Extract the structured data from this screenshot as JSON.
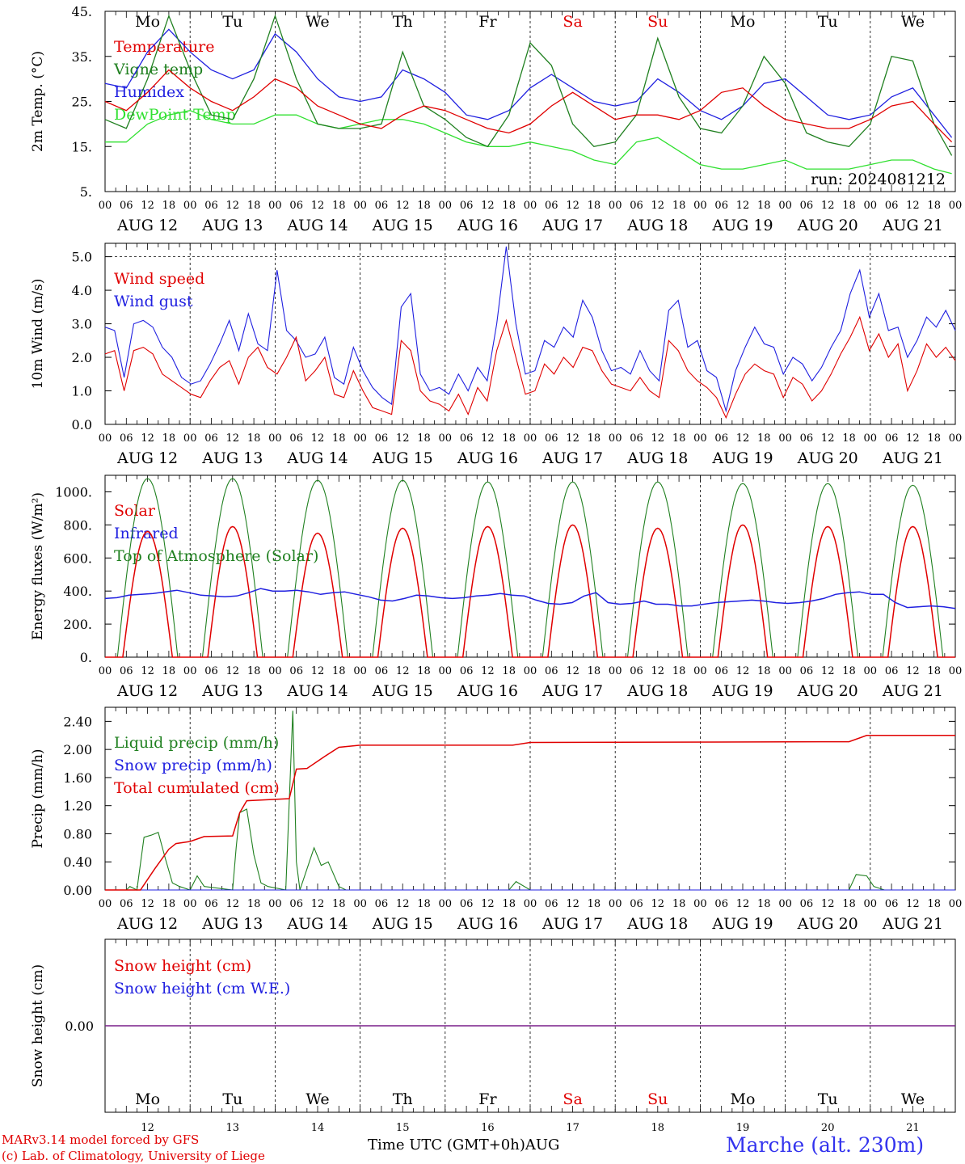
{
  "chart_data": [
    {
      "type": "line",
      "ylabel": "2m Temp. (°C)",
      "ylim": [
        5,
        45
      ],
      "yticks": [
        "45.",
        "35.",
        "25.",
        "15.",
        "5."
      ],
      "yticks_values": [
        45,
        35,
        25,
        15,
        5
      ],
      "annotation": "run: 2024081212",
      "x_hours": [
        0,
        6,
        12,
        18,
        24,
        30,
        36,
        42,
        48,
        54,
        60,
        66,
        72,
        78,
        84,
        90,
        96,
        102,
        108,
        114,
        120,
        126,
        132,
        138,
        144,
        150,
        156,
        162,
        168,
        174,
        180,
        186,
        192,
        198,
        204,
        210,
        216,
        222,
        228,
        234,
        239
      ],
      "series": [
        {
          "name": "Temperature",
          "color": "#e00000",
          "values": [
            25,
            23,
            27,
            32,
            28,
            25,
            23,
            26,
            30,
            28,
            24,
            22,
            20,
            19,
            22,
            24,
            23,
            21,
            19,
            18,
            20,
            24,
            27,
            24,
            21,
            22,
            22,
            21,
            23,
            27,
            28,
            24,
            21,
            20,
            19,
            19,
            21,
            24,
            25,
            20,
            16
          ]
        },
        {
          "name": "Vigne temp",
          "color": "#208020",
          "values": [
            21,
            19,
            30,
            44,
            32,
            22,
            21,
            30,
            44,
            30,
            20,
            19,
            19,
            20,
            36,
            24,
            21,
            17,
            15,
            22,
            38,
            33,
            20,
            15,
            16,
            22,
            39,
            26,
            19,
            18,
            24,
            35,
            29,
            18,
            16,
            15,
            20,
            35,
            34,
            20,
            13
          ]
        },
        {
          "name": "Humidex",
          "color": "#2020e0",
          "values": [
            29,
            28,
            36,
            41,
            36,
            32,
            30,
            32,
            40,
            36,
            30,
            26,
            25,
            26,
            32,
            30,
            27,
            22,
            21,
            23,
            28,
            31,
            28,
            25,
            24,
            25,
            30,
            27,
            23,
            21,
            24,
            29,
            30,
            26,
            22,
            21,
            22,
            26,
            28,
            22,
            17
          ]
        },
        {
          "name": "DewPoint Temp",
          "color": "#30e030",
          "values": [
            16,
            16,
            20,
            22,
            23,
            21,
            20,
            20,
            22,
            22,
            20,
            19,
            20,
            21,
            21,
            20,
            18,
            16,
            15,
            15,
            16,
            15,
            14,
            12,
            11,
            16,
            17,
            14,
            11,
            10,
            10,
            11,
            12,
            10,
            10,
            10,
            11,
            12,
            12,
            10,
            9
          ]
        }
      ]
    },
    {
      "type": "line",
      "ylabel": "10m Wind (m/s)",
      "ylim": [
        0,
        5.4
      ],
      "yticks": [
        "5.0",
        "4.0",
        "3.0",
        "2.0",
        "1.0",
        "0.0"
      ],
      "yticks_values": [
        5,
        4,
        3,
        2,
        1,
        0
      ],
      "series": [
        {
          "name": "Wind speed",
          "color": "#e00000",
          "values": [
            2.1,
            2.2,
            1.0,
            2.2,
            2.3,
            2.1,
            1.5,
            1.3,
            1.1,
            0.9,
            0.8,
            1.3,
            1.7,
            1.9,
            1.2,
            2.0,
            2.3,
            1.7,
            1.5,
            2.0,
            2.6,
            1.3,
            1.6,
            2.0,
            0.9,
            0.8,
            1.6,
            1.0,
            0.5,
            0.4,
            0.3,
            2.5,
            2.2,
            1.0,
            0.7,
            0.6,
            0.4,
            0.9,
            0.3,
            1.1,
            0.7,
            2.2,
            3.1,
            2.0,
            0.9,
            1.0,
            1.8,
            1.5,
            2.0,
            1.7,
            2.3,
            2.2,
            1.6,
            1.2,
            1.1,
            1.0,
            1.4,
            1.0,
            0.8,
            2.5,
            2.2,
            1.6,
            1.3,
            1.1,
            0.8,
            0.2,
            0.9,
            1.5,
            1.8,
            1.6,
            1.5,
            0.8,
            1.4,
            1.2,
            0.7,
            1.0,
            1.5,
            2.1,
            2.6,
            3.2,
            2.2,
            2.7,
            2.0,
            2.4,
            1.0,
            1.6,
            2.4,
            2.0,
            2.3,
            1.9
          ]
        },
        {
          "name": "Wind gust",
          "color": "#2020e0",
          "values": [
            2.9,
            2.8,
            1.4,
            3.0,
            3.1,
            2.9,
            2.3,
            2.0,
            1.4,
            1.2,
            1.3,
            1.8,
            2.4,
            3.1,
            2.2,
            3.3,
            2.4,
            2.2,
            4.6,
            2.8,
            2.5,
            2.0,
            2.1,
            2.6,
            1.4,
            1.2,
            2.3,
            1.6,
            1.1,
            0.8,
            0.6,
            3.5,
            3.9,
            1.5,
            1.0,
            1.1,
            0.9,
            1.5,
            1.0,
            1.7,
            1.3,
            3.0,
            5.3,
            3.0,
            1.5,
            1.6,
            2.5,
            2.3,
            2.9,
            2.6,
            3.7,
            3.2,
            2.2,
            1.6,
            1.7,
            1.5,
            2.2,
            1.6,
            1.3,
            3.4,
            3.7,
            2.3,
            2.5,
            1.6,
            1.4,
            0.4,
            1.6,
            2.3,
            2.9,
            2.4,
            2.3,
            1.5,
            2.0,
            1.8,
            1.3,
            1.7,
            2.3,
            2.8,
            3.9,
            4.6,
            3.2,
            3.9,
            2.8,
            2.9,
            2.0,
            2.5,
            3.2,
            2.9,
            3.4,
            2.8
          ]
        }
      ]
    },
    {
      "type": "line",
      "ylabel": "Energy fluxes (W/m²)",
      "ylim": [
        0,
        1100
      ],
      "yticks": [
        "1000.",
        "800.",
        "600.",
        "400.",
        "200.",
        "0."
      ],
      "yticks_values": [
        1000,
        800,
        600,
        400,
        200,
        0
      ],
      "series": [
        {
          "name": "Solar",
          "color": "#e00000",
          "daily_peak": [
            760,
            790,
            750,
            780,
            790,
            800,
            780,
            800,
            790,
            790
          ]
        },
        {
          "name": "Infrared",
          "color": "#2020e0",
          "values": [
            355,
            360,
            375,
            380,
            385,
            395,
            405,
            390,
            375,
            370,
            365,
            370,
            390,
            415,
            400,
            400,
            405,
            395,
            380,
            390,
            395,
            380,
            365,
            345,
            340,
            355,
            375,
            370,
            360,
            355,
            360,
            370,
            375,
            385,
            375,
            370,
            345,
            325,
            320,
            330,
            370,
            390,
            330,
            320,
            325,
            340,
            320,
            320,
            310,
            310,
            320,
            330,
            335,
            340,
            345,
            340,
            330,
            325,
            330,
            340,
            355,
            380,
            390,
            395,
            380,
            380,
            330,
            300,
            305,
            310,
            305,
            295
          ]
        },
        {
          "name": "Top of Atmosphere (Solar)",
          "color": "#208020",
          "daily_peak": [
            1080,
            1080,
            1070,
            1070,
            1060,
            1060,
            1060,
            1050,
            1050,
            1040
          ]
        }
      ]
    },
    {
      "type": "line",
      "ylabel": "Precip (mm/h)",
      "ylim": [
        0,
        2.6
      ],
      "yticks": [
        "2.40",
        "2.00",
        "1.60",
        "1.20",
        "0.80",
        "0.40",
        "0.00"
      ],
      "yticks_values": [
        2.4,
        2.0,
        1.6,
        1.2,
        0.8,
        0.4,
        0.0
      ],
      "series": [
        {
          "name": "Liquid precip (mm/h)",
          "color": "#208020"
        },
        {
          "name": "Snow precip (mm/h)",
          "color": "#2020e0"
        },
        {
          "name": "Total cumulated (cm)",
          "color": "#e00000"
        }
      ]
    },
    {
      "type": "line",
      "ylabel": "Snow height (cm)",
      "ytick": "0.00",
      "series": [
        {
          "name": "Snow height (cm)",
          "color": "#e00000"
        },
        {
          "name": "Snow height (cm W.E.)",
          "color": "#2020e0"
        }
      ]
    }
  ],
  "x_axis": {
    "hour_ticks": [
      "00",
      "06",
      "12",
      "18"
    ],
    "date_labels": [
      "AUG 12",
      "AUG 13",
      "AUG 14",
      "AUG 15",
      "AUG 16",
      "AUG 17",
      "AUG 18",
      "AUG 19",
      "AUG 20",
      "AUG 21"
    ],
    "end_hour_label": "00"
  },
  "weekdays": [
    {
      "label": "Mo",
      "color": "#000000"
    },
    {
      "label": "Tu",
      "color": "#000000"
    },
    {
      "label": "We",
      "color": "#000000"
    },
    {
      "label": "Th",
      "color": "#000000"
    },
    {
      "label": "Fr",
      "color": "#000000"
    },
    {
      "label": "Sa",
      "color": "#e00000"
    },
    {
      "label": "Su",
      "color": "#e00000"
    },
    {
      "label": "Mo",
      "color": "#000000"
    },
    {
      "label": "Tu",
      "color": "#000000"
    },
    {
      "label": "We",
      "color": "#000000"
    }
  ],
  "bottom_day_numbers": [
    "12",
    "13",
    "14",
    "15",
    "16",
    "17",
    "18",
    "19",
    "20",
    "21"
  ],
  "footer": {
    "model_line": "MARv3.14 model forced by GFS",
    "copyright_line": "(c) Lab. of Climatology, University of Liege",
    "time_axis_label": "Time UTC (GMT+0h)",
    "month": "AUG",
    "station": "Marche (alt. 230m)"
  }
}
